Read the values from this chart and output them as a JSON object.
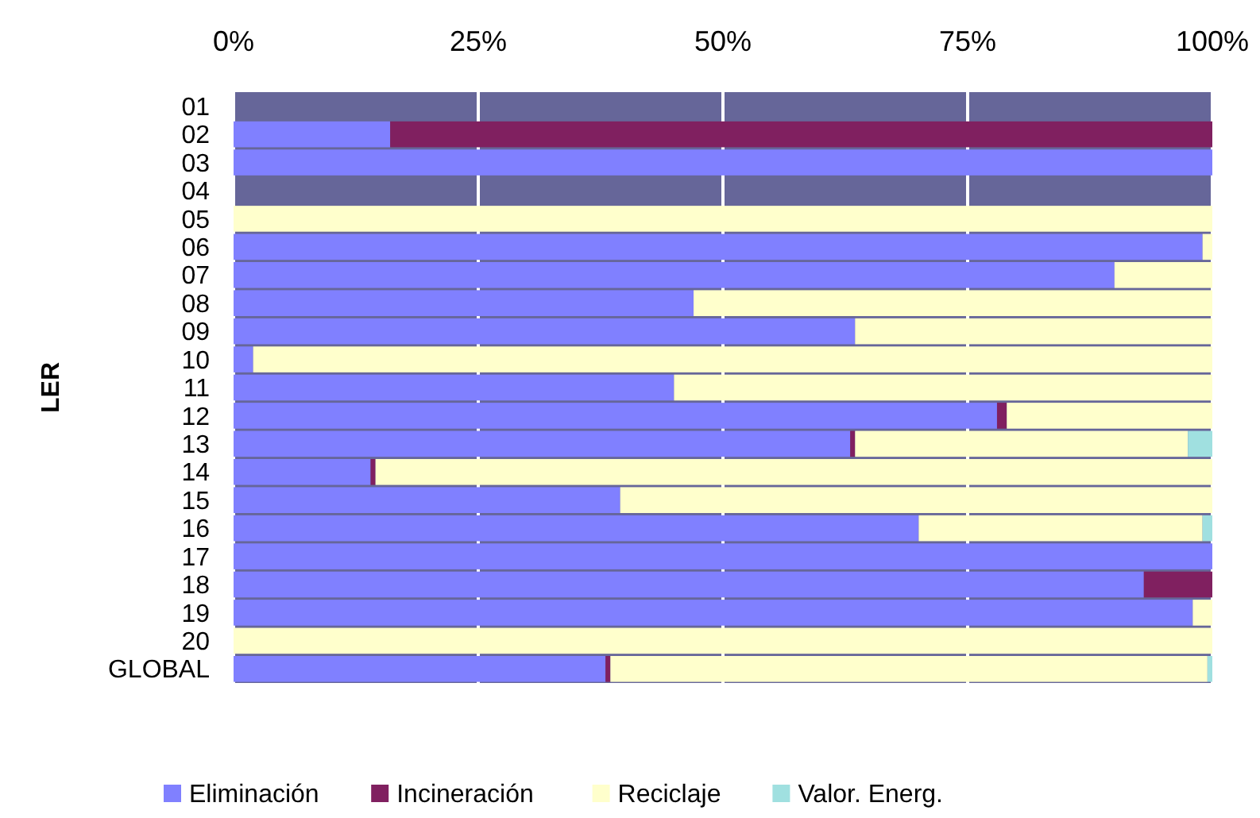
{
  "chart_data": {
    "type": "bar",
    "orientation": "horizontal",
    "stacked": true,
    "ylabel": "LER",
    "categories": [
      "01",
      "02",
      "03",
      "04",
      "05",
      "06",
      "07",
      "08",
      "09",
      "10",
      "11",
      "12",
      "13",
      "14",
      "15",
      "16",
      "17",
      "18",
      "19",
      "20",
      "GLOBAL"
    ],
    "series": [
      {
        "name": "Eliminación",
        "color": "#8080ff",
        "values": [
          0,
          16,
          100,
          0,
          0,
          99,
          90,
          47,
          63.5,
          2,
          45,
          78,
          63,
          14,
          39.5,
          70,
          100,
          93,
          98,
          0,
          38
        ]
      },
      {
        "name": "Incineración",
        "color": "#802060",
        "values": [
          0,
          84,
          0,
          0,
          0,
          0,
          0,
          0,
          0,
          0,
          0,
          1,
          0.5,
          0.5,
          0,
          0,
          0,
          7,
          0,
          0,
          0.5
        ]
      },
      {
        "name": "Reciclaje",
        "color": "#ffffcc",
        "values": [
          0,
          0,
          0,
          0,
          100,
          1,
          10,
          53,
          36.5,
          98,
          55,
          21,
          34,
          85.5,
          60.5,
          29,
          0,
          0,
          2,
          100,
          61
        ]
      },
      {
        "name": "Valor. Energ.",
        "color": "#a0e0e0",
        "values": [
          0,
          0,
          0,
          0,
          0,
          0,
          0,
          0,
          0,
          0,
          0,
          0,
          2.5,
          0,
          0,
          1,
          0,
          0,
          0,
          0,
          0.5
        ]
      }
    ],
    "xlim": [
      0,
      100
    ],
    "xticks": [
      {
        "value": 0,
        "label": "0%"
      },
      {
        "value": 25,
        "label": "25%"
      },
      {
        "value": 50,
        "label": "50%"
      },
      {
        "value": 75,
        "label": "75%"
      },
      {
        "value": 100,
        "label": "100%"
      }
    ],
    "bands": [
      {
        "axis": "x",
        "from": 0,
        "to": 100,
        "color": "#666699"
      }
    ],
    "grid": "x",
    "legend": "bottom"
  }
}
